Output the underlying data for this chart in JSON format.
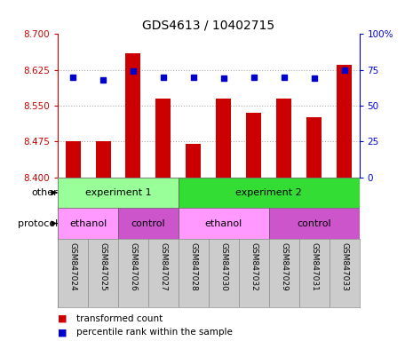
{
  "title": "GDS4613 / 10402715",
  "samples": [
    "GSM847024",
    "GSM847025",
    "GSM847026",
    "GSM847027",
    "GSM847028",
    "GSM847030",
    "GSM847032",
    "GSM847029",
    "GSM847031",
    "GSM847033"
  ],
  "transformed_counts": [
    8.475,
    8.475,
    8.66,
    8.565,
    8.47,
    8.565,
    8.535,
    8.565,
    8.525,
    8.635
  ],
  "percentile_ranks": [
    70,
    68,
    74,
    70,
    70,
    69,
    70,
    70,
    69,
    75
  ],
  "ylim_left": [
    8.4,
    8.7
  ],
  "ylim_right": [
    0,
    100
  ],
  "yticks_left": [
    8.4,
    8.475,
    8.55,
    8.625,
    8.7
  ],
  "yticks_right": [
    0,
    25,
    50,
    75,
    100
  ],
  "bar_color": "#cc0000",
  "dot_color": "#0000cc",
  "bar_bottom": 8.4,
  "groups_other": [
    {
      "label": "experiment 1",
      "start": 0,
      "end": 4,
      "color": "#99ff99"
    },
    {
      "label": "experiment 2",
      "start": 4,
      "end": 10,
      "color": "#33dd33"
    }
  ],
  "groups_protocol": [
    {
      "label": "ethanol",
      "start": 0,
      "end": 2,
      "color": "#ff99ff"
    },
    {
      "label": "control",
      "start": 2,
      "end": 4,
      "color": "#cc55cc"
    },
    {
      "label": "ethanol",
      "start": 4,
      "end": 7,
      "color": "#ff99ff"
    },
    {
      "label": "control",
      "start": 7,
      "end": 10,
      "color": "#cc55cc"
    }
  ],
  "legend_items": [
    {
      "label": "transformed count",
      "color": "#cc0000"
    },
    {
      "label": "percentile rank within the sample",
      "color": "#0000cc"
    }
  ],
  "names_bg": "#cccccc",
  "grid_color": "#aaaaaa",
  "background_color": "#ffffff",
  "bar_width": 0.5
}
